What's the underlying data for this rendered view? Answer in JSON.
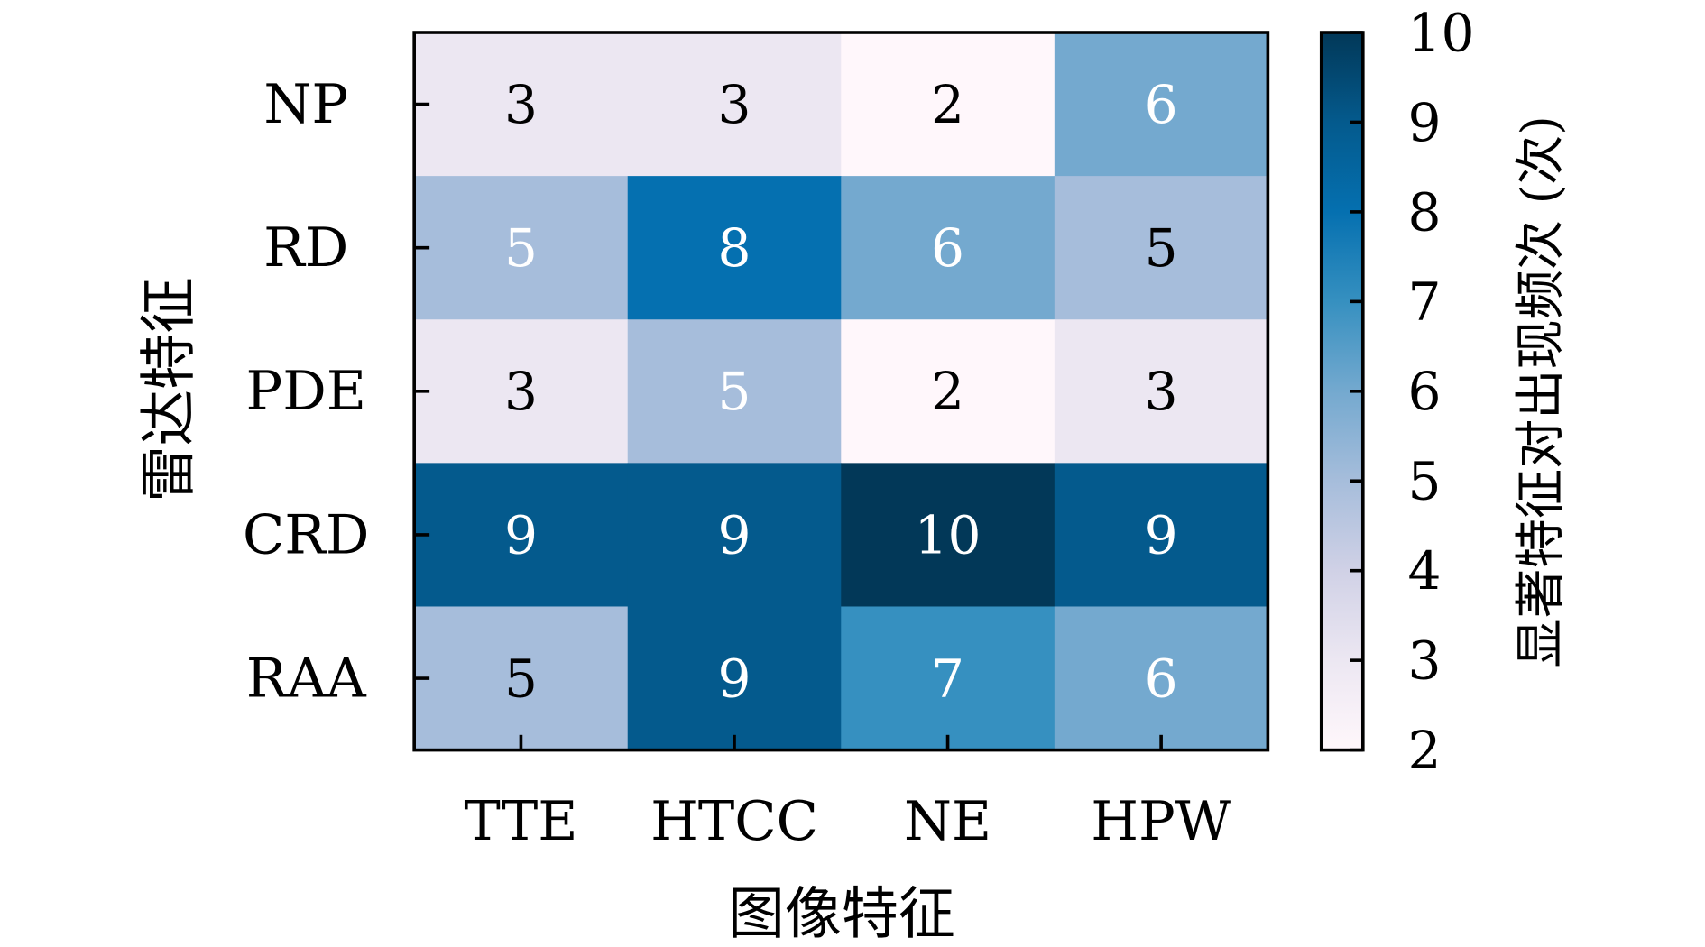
{
  "chart_data": {
    "type": "heatmap",
    "title": "",
    "xlabel": "图像特征",
    "ylabel": "雷达特征",
    "x_categories": [
      "TTE",
      "HTCC",
      "NE",
      "HPW"
    ],
    "y_categories": [
      "NP",
      "RD",
      "PDE",
      "CRD",
      "RAA"
    ],
    "values": [
      [
        3,
        3,
        2,
        6
      ],
      [
        5,
        8,
        6,
        5
      ],
      [
        3,
        5,
        2,
        3
      ],
      [
        9,
        9,
        10,
        9
      ],
      [
        5,
        9,
        7,
        6
      ]
    ],
    "annotation_colors": [
      [
        "#000000",
        "#000000",
        "#000000",
        "#ffffff"
      ],
      [
        "#ffffff",
        "#ffffff",
        "#ffffff",
        "#000000"
      ],
      [
        "#000000",
        "#ffffff",
        "#000000",
        "#000000"
      ],
      [
        "#ffffff",
        "#ffffff",
        "#ffffff",
        "#ffffff"
      ],
      [
        "#000000",
        "#ffffff",
        "#ffffff",
        "#ffffff"
      ]
    ],
    "colorbar": {
      "label": "显著特征对出现频次 (次)",
      "range": [
        2,
        10
      ],
      "ticks": [
        "2",
        "3",
        "4",
        "5",
        "6",
        "7",
        "8",
        "9",
        "10"
      ],
      "colormap": "PuBu",
      "colormap_stops": [
        "#fff7fb",
        "#ece7f2",
        "#d0d1e6",
        "#a6bddb",
        "#74a9cf",
        "#3690c0",
        "#0570b0",
        "#045a8d",
        "#023858"
      ]
    },
    "grid": false
  }
}
